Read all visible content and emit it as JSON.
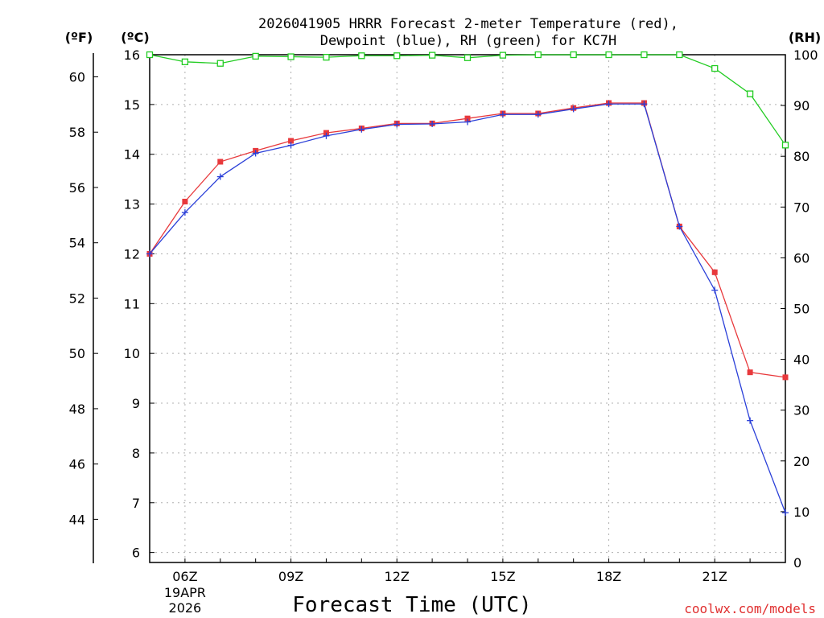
{
  "chart_data": {
    "type": "line",
    "title_line1": "2026041905 HRRR Forecast 2-meter Temperature (red),",
    "title_line2": "Dewpoint (blue), RH (green) for KC7H",
    "xlabel": "Forecast Time (UTC)",
    "credit": "coolwx.com/models",
    "unit_f": "(ºF)",
    "unit_c": "(ºC)",
    "unit_rh": "(RH)",
    "x_hours": [
      5,
      6,
      7,
      8,
      9,
      10,
      11,
      12,
      13,
      14,
      15,
      16,
      17,
      18,
      19,
      20,
      21,
      22,
      23
    ],
    "xlim": [
      5,
      23
    ],
    "x_ticks": [
      {
        "hour": 6,
        "label": "06Z",
        "sub1": "19APR",
        "sub2": "2026"
      },
      {
        "hour": 9,
        "label": "09Z"
      },
      {
        "hour": 12,
        "label": "12Z"
      },
      {
        "hour": 15,
        "label": "15Z"
      },
      {
        "hour": 18,
        "label": "18Z"
      },
      {
        "hour": 21,
        "label": "21Z"
      }
    ],
    "ylim_c": [
      5.8,
      16
    ],
    "yticks_c": [
      "6",
      "7",
      "8",
      "9",
      "10",
      "11",
      "12",
      "13",
      "14",
      "15",
      "16"
    ],
    "yticks_f": [
      "44",
      "46",
      "48",
      "50",
      "52",
      "54",
      "56",
      "58",
      "60"
    ],
    "ylim_rh": [
      0,
      100
    ],
    "yticks_rh": [
      "0",
      "10",
      "20",
      "30",
      "40",
      "50",
      "60",
      "70",
      "80",
      "90",
      "100"
    ],
    "series": [
      {
        "name": "Temperature",
        "color": "#e8393c",
        "marker": "filled-square",
        "values": [
          12.0,
          13.05,
          13.85,
          14.07,
          14.27,
          14.43,
          14.52,
          14.62,
          14.62,
          14.72,
          14.82,
          14.82,
          14.93,
          15.03,
          15.03,
          12.55,
          11.63,
          9.62,
          9.52
        ]
      },
      {
        "name": "Dewpoint",
        "color": "#2a3fd8",
        "marker": "plus",
        "values": [
          12.0,
          12.83,
          13.55,
          14.02,
          14.18,
          14.37,
          14.5,
          14.6,
          14.61,
          14.65,
          14.8,
          14.8,
          14.91,
          15.01,
          15.01,
          12.55,
          11.27,
          8.65,
          6.8
        ]
      },
      {
        "name": "RH",
        "color": "#22cc22",
        "marker": "open-square",
        "axis": "rh",
        "values": [
          100,
          98.6,
          98.3,
          99.7,
          99.6,
          99.5,
          99.8,
          99.8,
          99.9,
          99.4,
          99.9,
          100,
          100,
          100,
          100,
          100,
          97.3,
          92.3,
          82.2
        ]
      }
    ]
  }
}
